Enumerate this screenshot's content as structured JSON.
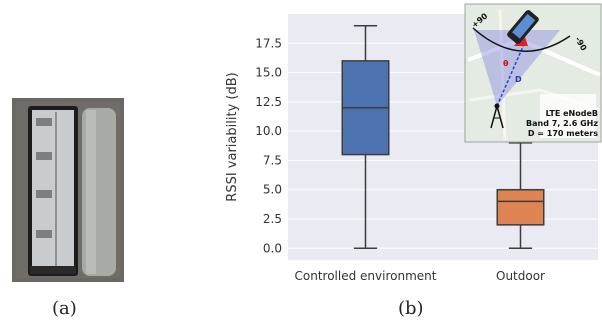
{
  "captions": {
    "a": "(a)",
    "b": "(b)"
  },
  "inset": {
    "angle_pos": "+90",
    "angle_neg": "-90",
    "theta": "θ",
    "distance_symbol": "D",
    "station_lines": [
      "LTE eNodeB",
      "Band 7, 2.6 GHz",
      "D = 170 meters"
    ]
  },
  "chart_data": {
    "type": "box",
    "categories": [
      "Controlled environment",
      "Outdoor"
    ],
    "ylabel": "RSSI variability (dB)",
    "ylim": [
      -1.0,
      20.0
    ],
    "yticks": [
      "0.0",
      "2.5",
      "5.0",
      "7.5",
      "10.0",
      "12.5",
      "15.0",
      "17.5"
    ],
    "series": [
      {
        "category": "Controlled environment",
        "min": 0,
        "q1": 8,
        "median": 12,
        "q3": 16,
        "max": 19,
        "color": "#4c72b0"
      },
      {
        "category": "Outdoor",
        "min": 0,
        "q1": 2,
        "median": 4,
        "q3": 5,
        "max": 9,
        "color": "#dd8452"
      }
    ]
  }
}
